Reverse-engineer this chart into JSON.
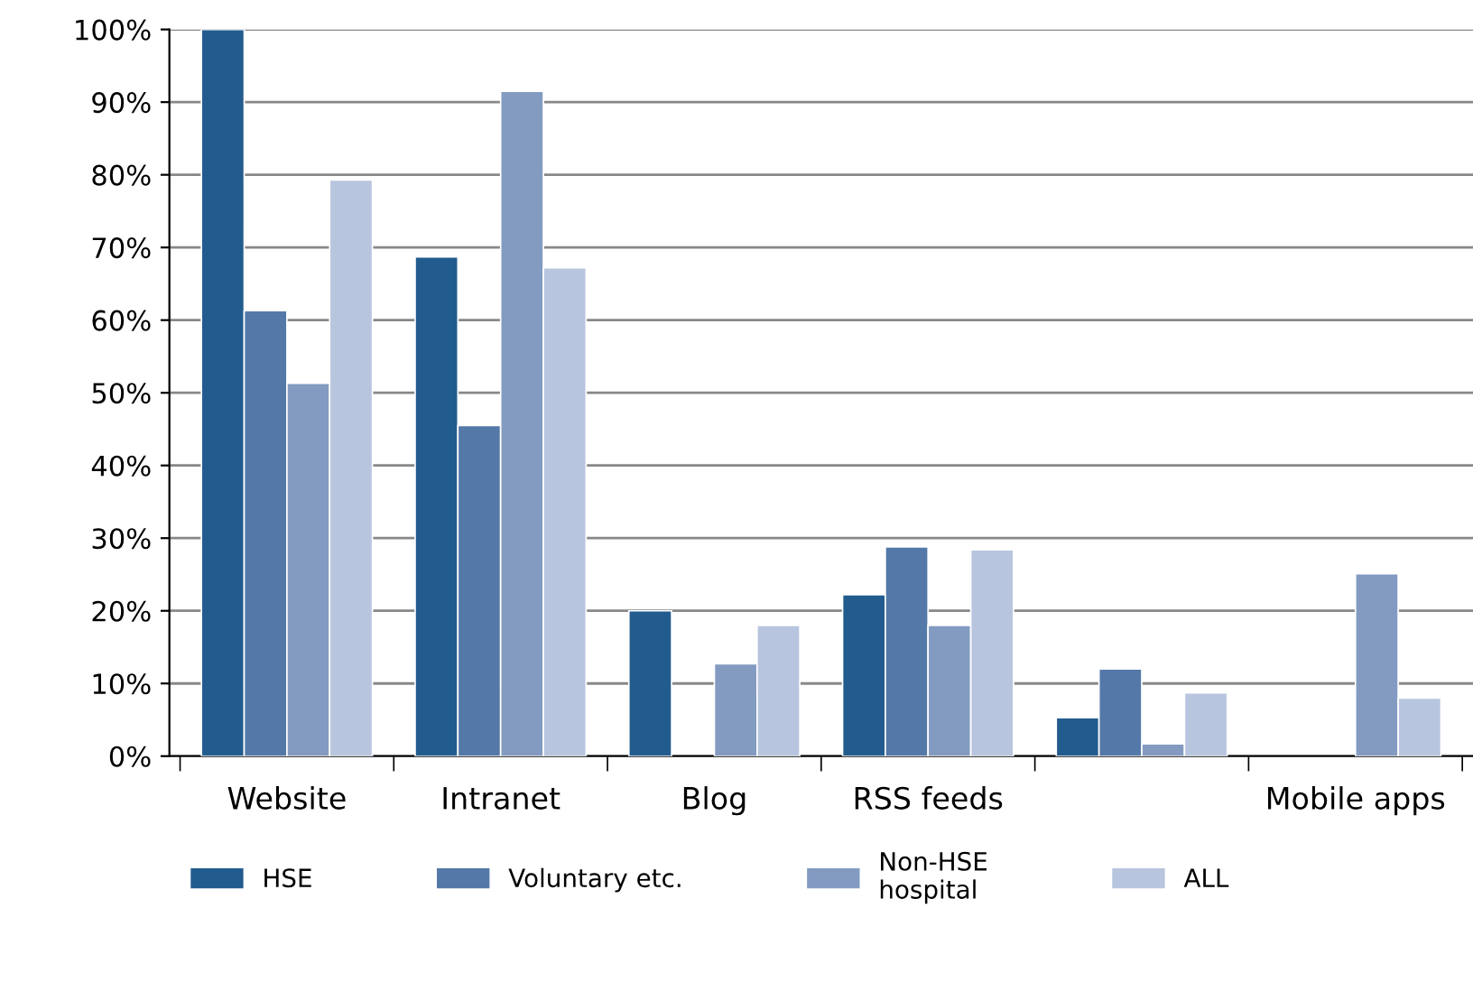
{
  "chart_data": {
    "type": "bar",
    "categories": [
      "Website",
      "Intranet",
      "Blog",
      "RSS feeds",
      null,
      "Mobile apps"
    ],
    "series": [
      {
        "name": "HSE",
        "color": "#225c8f",
        "values": [
          100,
          68.7,
          20,
          22.2,
          5.3,
          null
        ]
      },
      {
        "name": "Voluntary etc.",
        "color": "#5479a8",
        "values": [
          61.3,
          45.5,
          null,
          28.8,
          12,
          null
        ]
      },
      {
        "name": "Non-HSE\nhospital",
        "color": "#839bc1",
        "values": [
          51.3,
          91.5,
          12.7,
          18,
          1.7,
          25.1
        ]
      },
      {
        "name": "ALL",
        "color": "#b8c5de",
        "values": [
          79.3,
          67.2,
          18,
          28.4,
          8.7,
          8
        ]
      }
    ],
    "ylim": [
      0,
      100
    ],
    "yticks": [
      {
        "value": 0,
        "label": "0%"
      },
      {
        "value": 10,
        "label": "10%"
      },
      {
        "value": 20,
        "label": "20%"
      },
      {
        "value": 30,
        "label": "30%"
      },
      {
        "value": 40,
        "label": "40%"
      },
      {
        "value": 50,
        "label": "50%"
      },
      {
        "value": 60,
        "label": "60%"
      },
      {
        "value": 70,
        "label": "70%"
      },
      {
        "value": 80,
        "label": "80%"
      },
      {
        "value": 90,
        "label": "90%"
      },
      {
        "value": 100,
        "label": "100%"
      }
    ],
    "grid": "y",
    "legend": "bottom"
  }
}
